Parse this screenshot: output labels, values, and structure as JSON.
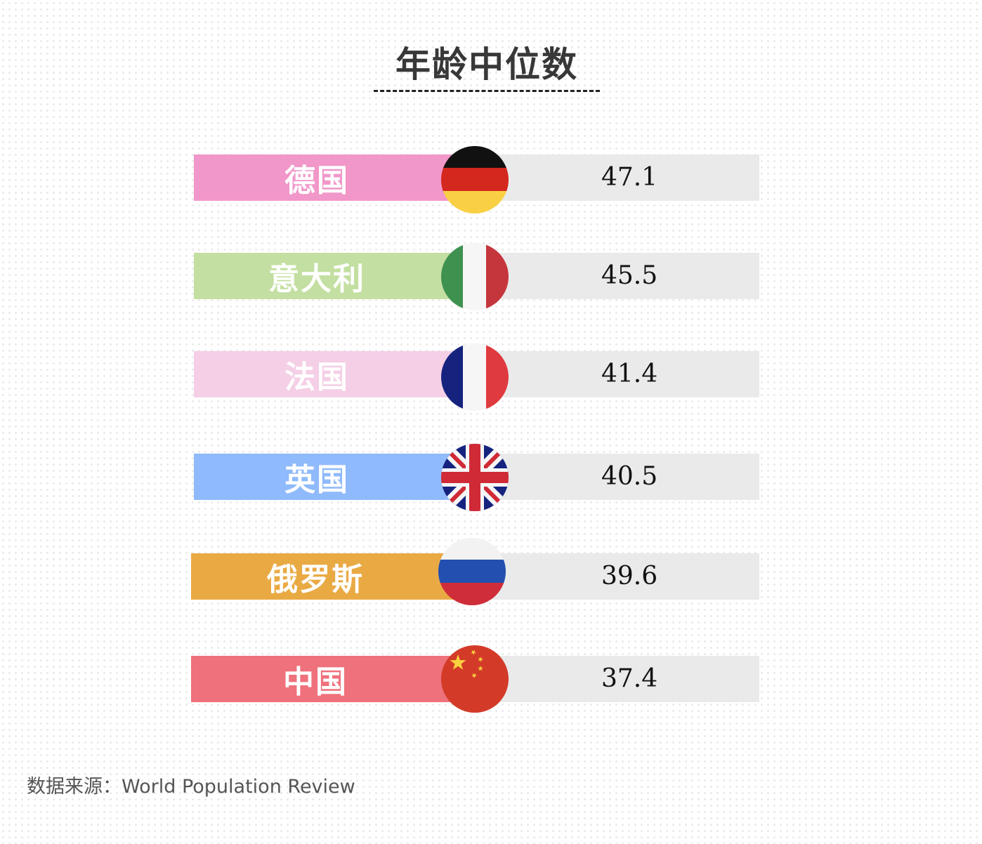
{
  "title": "年龄中位数",
  "source": "数据来源：World Population Review",
  "chart_data": {
    "type": "bar",
    "categories": [
      "德国",
      "意大利",
      "法国",
      "英国",
      "俄罗斯",
      "中国"
    ],
    "values": [
      47.1,
      45.5,
      41.4,
      40.5,
      39.6,
      37.4
    ],
    "value_labels": [
      "47.1",
      "45.5",
      "41.4",
      "40.5",
      "39.6",
      "37.4"
    ],
    "colors": [
      "#f197c9",
      "#c3dfa1",
      "#f4cfe6",
      "#8fbafb",
      "#e9aa44",
      "#ee717c"
    ],
    "flags": [
      "germany-flag-icon",
      "italy-flag-icon",
      "france-flag-icon",
      "uk-flag-icon",
      "russia-flag-icon",
      "china-flag-icon"
    ],
    "title": "年龄中位数",
    "xlabel": "",
    "ylabel": ""
  }
}
